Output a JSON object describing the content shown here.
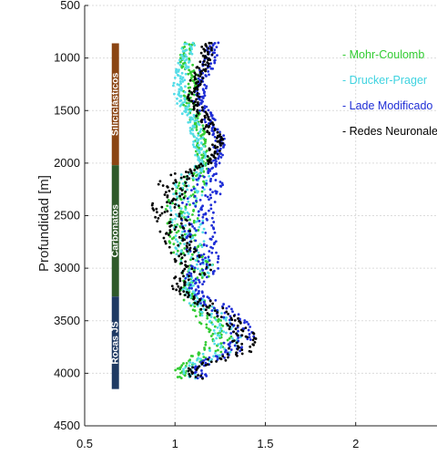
{
  "chart_data": {
    "type": "scatter",
    "title": "",
    "xlabel": "",
    "ylabel": "Profundidad [m]",
    "xlim": [
      0.5,
      2.45
    ],
    "ylim": [
      500,
      4500
    ],
    "y_reversed": true,
    "grid": true,
    "x_ticks": [
      "0.5",
      "1",
      "1.5",
      "2"
    ],
    "y_ticks": [
      "500",
      "1000",
      "1500",
      "2000",
      "2500",
      "3000",
      "3500",
      "4000",
      "4500"
    ],
    "legend_position": "top-right",
    "lithology": [
      {
        "label": "Siliciclásticos",
        "top": 860,
        "bottom": 2020,
        "color": "#8b4513"
      },
      {
        "label": "Carbonatos",
        "top": 2020,
        "bottom": 3270,
        "color": "#2f5a2a"
      },
      {
        "label": "Rocas JS",
        "top": 3270,
        "bottom": 4150,
        "color": "#1f3a63"
      }
    ],
    "series": [
      {
        "name": "- Mohr-Coulomb",
        "color": "#33cc33",
        "depth": [
          850,
          1000,
          1200,
          1400,
          1600,
          1800,
          2000,
          2200,
          2400,
          2600,
          2800,
          3000,
          3200,
          3350,
          3500,
          3650,
          3800,
          3950,
          4050
        ],
        "values": [
          1.07,
          1.05,
          1.1,
          1.07,
          1.12,
          1.14,
          1.16,
          1.1,
          1.03,
          1.05,
          1.06,
          1.13,
          1.05,
          1.14,
          1.2,
          1.25,
          1.2,
          1.03,
          1.05
        ]
      },
      {
        "name": "- Drucker-Prager",
        "color": "#55dde8",
        "depth": [
          850,
          1000,
          1200,
          1400,
          1600,
          1800,
          2000,
          2200,
          2400,
          2600,
          2800,
          3000,
          3200,
          3350,
          3500,
          3650,
          3800,
          3950,
          4050
        ],
        "values": [
          1.08,
          1.06,
          1.02,
          1.03,
          1.1,
          1.13,
          1.15,
          1.09,
          1.06,
          1.07,
          1.08,
          1.14,
          1.06,
          1.16,
          1.25,
          1.3,
          1.24,
          1.08,
          1.09
        ]
      },
      {
        "name": "- Lade Modificado",
        "color": "#1f2ed6",
        "depth": [
          850,
          1000,
          1200,
          1400,
          1600,
          1800,
          2000,
          2200,
          2400,
          2600,
          2800,
          3000,
          3200,
          3350,
          3500,
          3650,
          3800,
          3950,
          4050
        ],
        "values": [
          1.21,
          1.2,
          1.15,
          1.13,
          1.2,
          1.25,
          1.22,
          1.2,
          1.12,
          1.13,
          1.14,
          1.18,
          1.1,
          1.22,
          1.33,
          1.37,
          1.3,
          1.13,
          1.15
        ]
      },
      {
        "name": "- Redes Neuronales",
        "color": "#000000",
        "depth": [
          850,
          1000,
          1200,
          1400,
          1600,
          1800,
          2000,
          2200,
          2400,
          2600,
          2800,
          3000,
          3200,
          3350,
          3500,
          3650,
          3800,
          3950,
          4050
        ],
        "values": [
          1.18,
          1.17,
          1.12,
          1.1,
          1.17,
          1.24,
          1.18,
          0.98,
          0.95,
          1.0,
          1.02,
          1.12,
          1.0,
          1.18,
          1.3,
          1.4,
          1.35,
          1.1,
          1.12
        ]
      }
    ]
  }
}
